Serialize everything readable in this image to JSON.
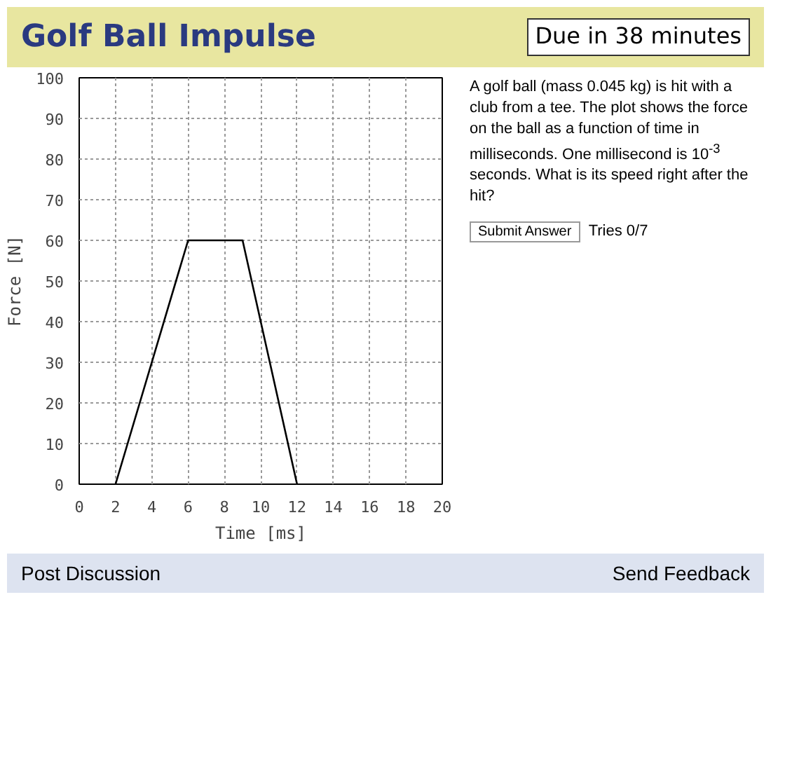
{
  "chart_data": {
    "type": "line",
    "title": "Golf Ball Impulse",
    "xlabel": "Time [ms]",
    "ylabel": "Force [N]",
    "x": [
      2,
      6,
      9,
      12
    ],
    "values": [
      0,
      60,
      60,
      0
    ],
    "color": "#000000",
    "xlim": [
      0,
      20
    ],
    "xticks": [
      0,
      2,
      4,
      6,
      8,
      10,
      12,
      14,
      16,
      18,
      20
    ],
    "ylim": [
      0,
      100
    ],
    "yticks": [
      0,
      10,
      20,
      30,
      40,
      50,
      60,
      70,
      80,
      90,
      100
    ],
    "grid": true,
    "line_style": "solid",
    "annotations": [
      "Due in 38 minutes",
      "A golf ball (mass 0.045 kg) is hit with a club from a tee. The plot shows the force on the ball as a function of time in milliseconds. One millisecond is 10$^{-3}$ seconds. What is its speed right after the hit?",
      "Submit Answer",
      "Tries 0/7",
      "Post Discussion",
      "Send Feedback"
    ]
  }
}
